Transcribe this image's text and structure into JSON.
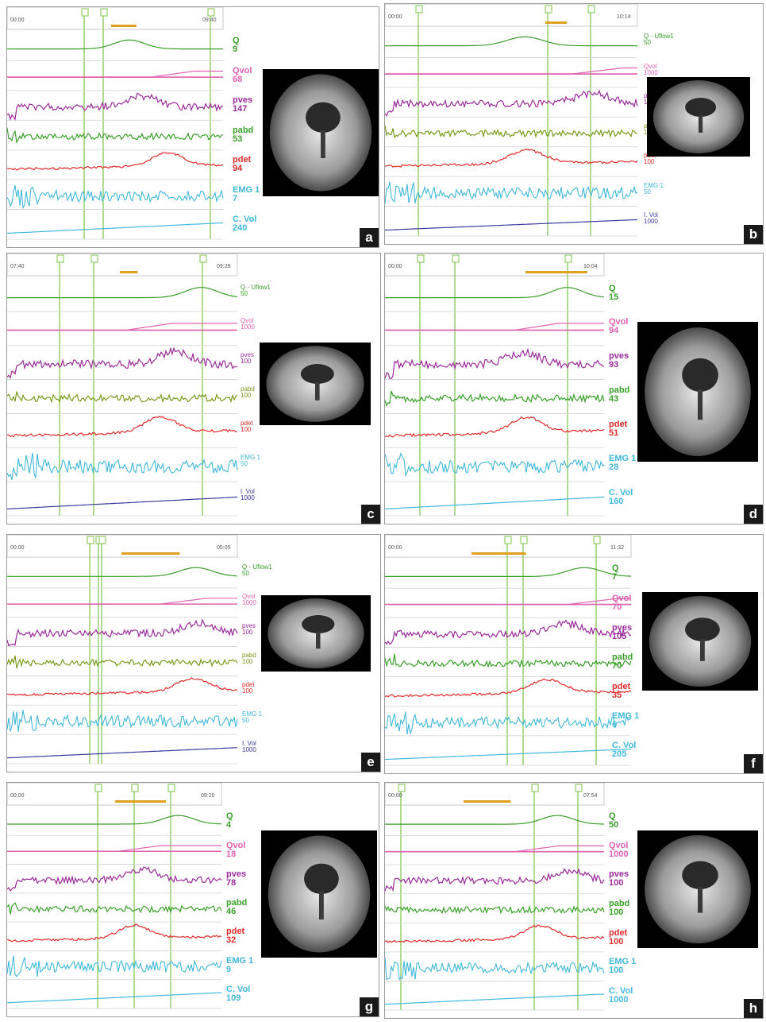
{
  "colors": {
    "q": "#3a9e2a",
    "qvol": "#e060b0",
    "pves": "#9a2a9a",
    "pabd": "#3aa02a",
    "pabd_olive": "#7a9a1a",
    "pdet": "#e02a2a",
    "emg": "#40b8d8",
    "cvol": "#40b8e0",
    "ivol": "#3a3aa0",
    "marker": "#7cc44a",
    "bar": "#e0a020"
  },
  "panels": [
    {
      "id": "a",
      "tag": "a",
      "style": "big",
      "labels": [
        {
          "k": "q",
          "name": "Q",
          "value": "9"
        },
        {
          "k": "qvol",
          "name": "Qvol",
          "value": "68"
        },
        {
          "k": "pves",
          "name": "pves",
          "value": "147"
        },
        {
          "k": "pabd",
          "name": "pabd",
          "value": "53"
        },
        {
          "k": "pdet",
          "name": "pdet",
          "value": "94"
        },
        {
          "k": "emg",
          "name": "EMG 1",
          "value": "7"
        },
        {
          "k": "cvol",
          "name": "C. Vol",
          "value": "240"
        }
      ],
      "times": [
        "00:00",
        "09:40"
      ]
    },
    {
      "id": "b",
      "tag": "b",
      "style": "small",
      "labels": [
        {
          "k": "q",
          "name": "Q - Uflow1",
          "value": "50"
        },
        {
          "k": "qvol",
          "name": "Qvol",
          "value": "1000"
        },
        {
          "k": "pves",
          "name": "pves",
          "value": "100"
        },
        {
          "k": "pabd_olive",
          "name": "pabd",
          "value": "100"
        },
        {
          "k": "pdet",
          "name": "pdet",
          "value": "100"
        },
        {
          "k": "emg",
          "name": "EMG 1",
          "value": "50"
        },
        {
          "k": "ivol",
          "name": "I. Vol",
          "value": "1000"
        }
      ],
      "times": [
        "00:00",
        "10:14"
      ]
    },
    {
      "id": "c",
      "tag": "c",
      "style": "small",
      "labels": [
        {
          "k": "q",
          "name": "Q - Uflow1",
          "value": "50"
        },
        {
          "k": "qvol",
          "name": "Qvol",
          "value": "1000"
        },
        {
          "k": "pves",
          "name": "pves",
          "value": "100"
        },
        {
          "k": "pabd_olive",
          "name": "pabd",
          "value": "100"
        },
        {
          "k": "pdet",
          "name": "pdet",
          "value": "100"
        },
        {
          "k": "emg",
          "name": "EMG 1",
          "value": "50"
        },
        {
          "k": "ivol",
          "name": "I. Vol",
          "value": "1000"
        }
      ],
      "times": [
        "07:40",
        "09:29"
      ]
    },
    {
      "id": "d",
      "tag": "d",
      "style": "big",
      "labels": [
        {
          "k": "q",
          "name": "Q",
          "value": "15"
        },
        {
          "k": "qvol",
          "name": "Qvol",
          "value": "94"
        },
        {
          "k": "pves",
          "name": "pves",
          "value": "93"
        },
        {
          "k": "pabd",
          "name": "pabd",
          "value": "43"
        },
        {
          "k": "pdet",
          "name": "pdet",
          "value": "51"
        },
        {
          "k": "emg",
          "name": "EMG 1",
          "value": "28"
        },
        {
          "k": "cvol",
          "name": "C. Vol",
          "value": "160"
        }
      ],
      "times": [
        "00:00",
        "10:04"
      ]
    },
    {
      "id": "e",
      "tag": "e",
      "style": "small",
      "labels": [
        {
          "k": "q",
          "name": "Q - Uflow1",
          "value": "50"
        },
        {
          "k": "qvol",
          "name": "Qvol",
          "value": "1000"
        },
        {
          "k": "pves",
          "name": "pves",
          "value": "100"
        },
        {
          "k": "pabd_olive",
          "name": "pabd",
          "value": "100"
        },
        {
          "k": "pdet",
          "name": "pdet",
          "value": "100"
        },
        {
          "k": "emg",
          "name": "EMG 1",
          "value": "50"
        },
        {
          "k": "ivol",
          "name": "I. Vol",
          "value": "1000"
        }
      ],
      "times": [
        "00:00",
        "05:05"
      ]
    },
    {
      "id": "f",
      "tag": "f",
      "style": "big",
      "labels": [
        {
          "k": "q",
          "name": "Q",
          "value": "7"
        },
        {
          "k": "qvol",
          "name": "Qvol",
          "value": "70"
        },
        {
          "k": "pves",
          "name": "pves",
          "value": "105"
        },
        {
          "k": "pabd",
          "name": "pabd",
          "value": "70"
        },
        {
          "k": "pdet",
          "name": "pdet",
          "value": "35"
        },
        {
          "k": "emg",
          "name": "EMG 1",
          "value": "6"
        },
        {
          "k": "cvol",
          "name": "C. Vol",
          "value": "205"
        }
      ],
      "times": [
        "00:00",
        "11:32"
      ]
    },
    {
      "id": "g",
      "tag": "g",
      "style": "big",
      "labels": [
        {
          "k": "q",
          "name": "Q",
          "value": "4"
        },
        {
          "k": "qvol",
          "name": "Qvol",
          "value": "18"
        },
        {
          "k": "pves",
          "name": "pves",
          "value": "78"
        },
        {
          "k": "pabd",
          "name": "pabd",
          "value": "46"
        },
        {
          "k": "pdet",
          "name": "pdet",
          "value": "32"
        },
        {
          "k": "emg",
          "name": "EMG 1",
          "value": "9"
        },
        {
          "k": "cvol",
          "name": "C. Vol",
          "value": "109"
        }
      ],
      "times": [
        "00:00",
        "09:20"
      ]
    },
    {
      "id": "h",
      "tag": "h",
      "style": "big",
      "labels": [
        {
          "k": "q",
          "name": "Q",
          "value": "50"
        },
        {
          "k": "qvol",
          "name": "Qvol",
          "value": "1000"
        },
        {
          "k": "pves",
          "name": "pves",
          "value": "100"
        },
        {
          "k": "pabd",
          "name": "pabd",
          "value": "100"
        },
        {
          "k": "pdet",
          "name": "pdet",
          "value": "100"
        },
        {
          "k": "emg",
          "name": "EMG 1",
          "value": "100"
        },
        {
          "k": "cvol",
          "name": "C. Vol",
          "value": "1000"
        }
      ],
      "times": [
        "00:00",
        "07:54"
      ]
    }
  ]
}
